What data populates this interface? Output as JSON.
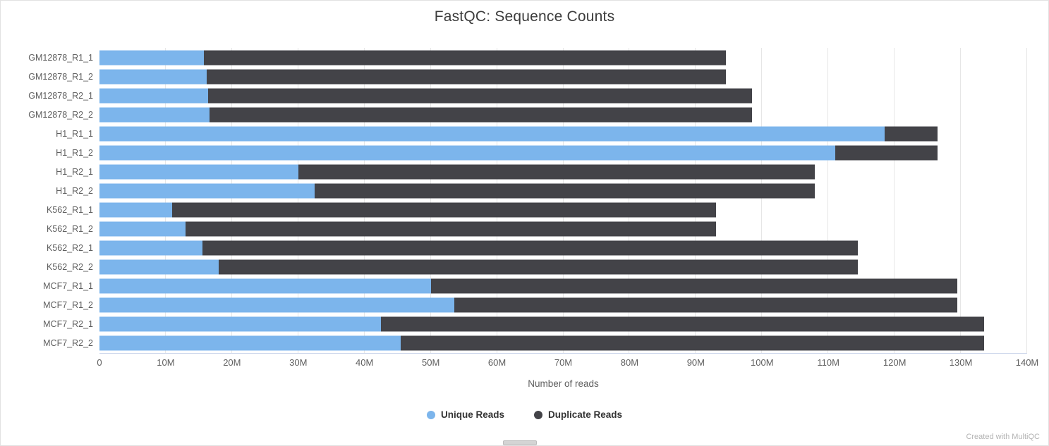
{
  "chart_data": {
    "type": "bar",
    "orientation": "horizontal",
    "stacked": true,
    "title": "FastQC: Sequence Counts",
    "xlabel": "Number of reads",
    "ylabel": "",
    "xlim": [
      0,
      140000000
    ],
    "grid": true,
    "legend_position": "bottom-center",
    "x_ticks": [
      "0",
      "10M",
      "20M",
      "30M",
      "40M",
      "50M",
      "60M",
      "70M",
      "80M",
      "90M",
      "100M",
      "110M",
      "120M",
      "130M",
      "140M"
    ],
    "categories": [
      "GM12878_R1_1",
      "GM12878_R1_2",
      "GM12878_R2_1",
      "GM12878_R2_2",
      "H1_R1_1",
      "H1_R1_2",
      "H1_R2_1",
      "H1_R2_2",
      "K562_R1_1",
      "K562_R1_2",
      "K562_R2_1",
      "K562_R2_2",
      "MCF7_R1_1",
      "MCF7_R1_2",
      "MCF7_R2_1",
      "MCF7_R2_2"
    ],
    "series": [
      {
        "name": "Unique Reads",
        "color": "#7cb5ec",
        "values": [
          15800000,
          16200000,
          16400000,
          16600000,
          118500000,
          111000000,
          30000000,
          32500000,
          11000000,
          13000000,
          15500000,
          18000000,
          50000000,
          53500000,
          42500000,
          45500000
        ]
      },
      {
        "name": "Duplicate Reads",
        "color": "#434348",
        "values": [
          78700000,
          78300000,
          82100000,
          81900000,
          8000000,
          15500000,
          78000000,
          75500000,
          82000000,
          80000000,
          99000000,
          96500000,
          79500000,
          76000000,
          91000000,
          88000000
        ]
      }
    ]
  },
  "footer": {
    "watermark": "Created with MultiQC"
  },
  "colors": {
    "gridline": "#e6e6e6",
    "axis_line": "#ccd6eb",
    "axis_text": "#5e5e5e",
    "title_text": "#3c3c3c"
  }
}
